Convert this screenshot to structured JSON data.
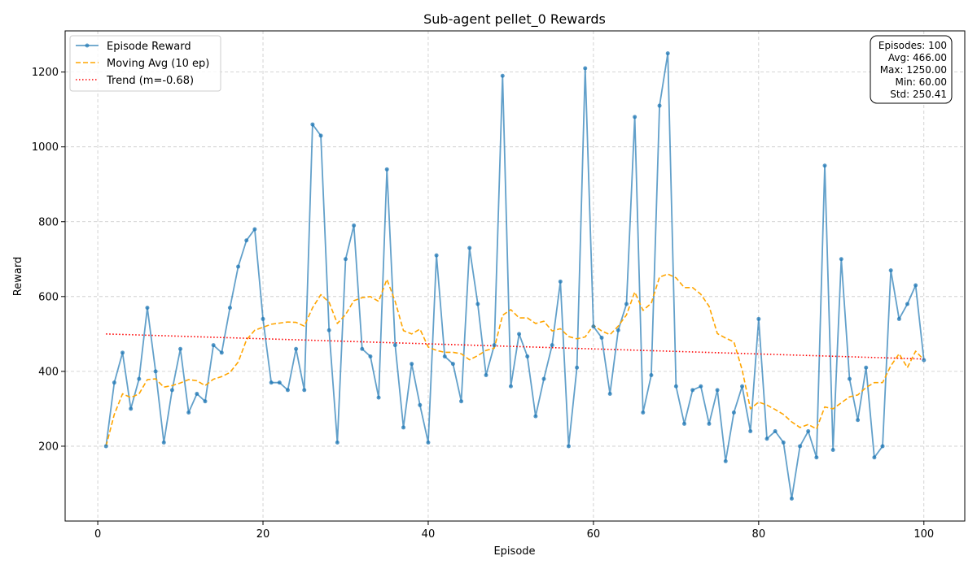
{
  "chart_data": {
    "type": "line",
    "title": "Sub-agent pellet_0 Rewards",
    "xlabel": "Episode",
    "ylabel": "Reward",
    "xlim": [
      -3.95,
      104.95
    ],
    "ylim": [
      0,
      1310
    ],
    "xticks": [
      0,
      20,
      40,
      60,
      80,
      100
    ],
    "yticks": [
      200,
      400,
      600,
      800,
      1000,
      1200
    ],
    "grid": true,
    "legend_position": "upper left",
    "x": [
      1,
      2,
      3,
      4,
      5,
      6,
      7,
      8,
      9,
      10,
      11,
      12,
      13,
      14,
      15,
      16,
      17,
      18,
      19,
      20,
      21,
      22,
      23,
      24,
      25,
      26,
      27,
      28,
      29,
      30,
      31,
      32,
      33,
      34,
      35,
      36,
      37,
      38,
      39,
      40,
      41,
      42,
      43,
      44,
      45,
      46,
      47,
      48,
      49,
      50,
      51,
      52,
      53,
      54,
      55,
      56,
      57,
      58,
      59,
      60,
      61,
      62,
      63,
      64,
      65,
      66,
      67,
      68,
      69,
      70,
      71,
      72,
      73,
      74,
      75,
      76,
      77,
      78,
      79,
      80,
      81,
      82,
      83,
      84,
      85,
      86,
      87,
      88,
      89,
      90,
      91,
      92,
      93,
      94,
      95,
      96,
      97,
      98,
      99,
      100
    ],
    "series": [
      {
        "name": "Episode Reward",
        "color": "#1f77b4",
        "style": "solid-markers",
        "values": [
          200,
          370,
          450,
          300,
          380,
          570,
          400,
          210,
          350,
          460,
          290,
          340,
          320,
          470,
          450,
          570,
          680,
          750,
          780,
          540,
          370,
          370,
          350,
          460,
          350,
          1060,
          1030,
          510,
          210,
          700,
          790,
          460,
          440,
          330,
          940,
          470,
          250,
          420,
          310,
          210,
          710,
          440,
          420,
          320,
          730,
          580,
          390,
          470,
          1190,
          360,
          500,
          440,
          280,
          380,
          470,
          640,
          200,
          410,
          1210,
          520,
          490,
          340,
          510,
          580,
          1080,
          290,
          390,
          1110,
          1250,
          360,
          260,
          350,
          360,
          260,
          350,
          160,
          290,
          360,
          240,
          540,
          220,
          240,
          210,
          60,
          200,
          240,
          170,
          950,
          190,
          700,
          380,
          270,
          410,
          170,
          200,
          670,
          540,
          580,
          630,
          430
        ]
      },
      {
        "name": "Moving Avg (10 ep)",
        "color": "#ffa500",
        "style": "dashed",
        "values": [
          200,
          285,
          340,
          330,
          340,
          378,
          380,
          358,
          362,
          369,
          378,
          375,
          362,
          379,
          386,
          397,
          425,
          484,
          510,
          518,
          526,
          529,
          532,
          531,
          521,
          570,
          605,
          585,
          528,
          552,
          589,
          597,
          600,
          587,
          646,
          587,
          509,
          500,
          513,
          465,
          456,
          451,
          451,
          447,
          431,
          442,
          456,
          462,
          550,
          565,
          543,
          543,
          528,
          534,
          508,
          514,
          493,
          487,
          492,
          523,
          508,
          498,
          521,
          551,
          612,
          563,
          582,
          652,
          660,
          650,
          624,
          624,
          606,
          574,
          501,
          489,
          479,
          404,
          300,
          318,
          310,
          298,
          285,
          265,
          250,
          258,
          246,
          305,
          300,
          316,
          332,
          337,
          357,
          370,
          370,
          415,
          447,
          410,
          454,
          431
        ]
      }
    ],
    "trend": {
      "name": "Trend (m=-0.68)",
      "color": "#ff0000",
      "style": "dotted",
      "x": [
        1,
        100
      ],
      "y": [
        500,
        433
      ]
    },
    "stats_box": {
      "lines": [
        "Episodes: 100",
        "Avg: 466.00",
        "Max: 1250.00",
        "Min: 60.00",
        "Std: 250.41"
      ]
    }
  }
}
